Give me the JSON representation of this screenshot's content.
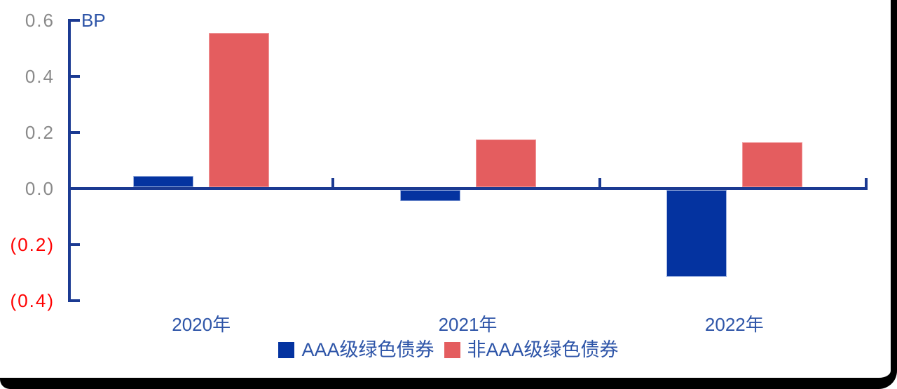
{
  "chart_data": {
    "type": "bar",
    "title": "",
    "categories": [
      "2020年",
      "2021年",
      "2022年"
    ],
    "series": [
      {
        "name": "AAA级绿色债券",
        "color": "#0433A0",
        "border_color": "#9DB1DE",
        "values": [
          0.04,
          -0.04,
          -0.31
        ]
      },
      {
        "name": "非AAA级绿色债券",
        "color": "#E45D5F",
        "border_color": "#F0999B",
        "values": [
          0.55,
          0.17,
          0.16
        ]
      }
    ],
    "y_axis": {
      "unit": "BP",
      "range": [
        -0.4,
        0.6
      ],
      "tick_step": 0.2,
      "negative_format": "parentheses-red",
      "ticks": [
        {
          "value": 0.6,
          "label": "0.6",
          "color": "#8A8A8A"
        },
        {
          "value": 0.4,
          "label": "0.4",
          "color": "#8A8A8A"
        },
        {
          "value": 0.2,
          "label": "0.2",
          "color": "#8A8A8A"
        },
        {
          "value": 0.0,
          "label": "0.0",
          "color": "#8A8A8A"
        },
        {
          "value": -0.2,
          "label": "(0.2)",
          "color": "#FF0000"
        },
        {
          "value": -0.4,
          "label": "(0.4)",
          "color": "#FF0000"
        }
      ]
    },
    "xlabel": "",
    "ylabel": "BP",
    "grid": false,
    "legend_position": "bottom-center",
    "colors": {
      "axis": "#1B3A92",
      "category_label": "#2E55A8",
      "legend_text": "#2E55A8",
      "frame": "#000000"
    }
  }
}
